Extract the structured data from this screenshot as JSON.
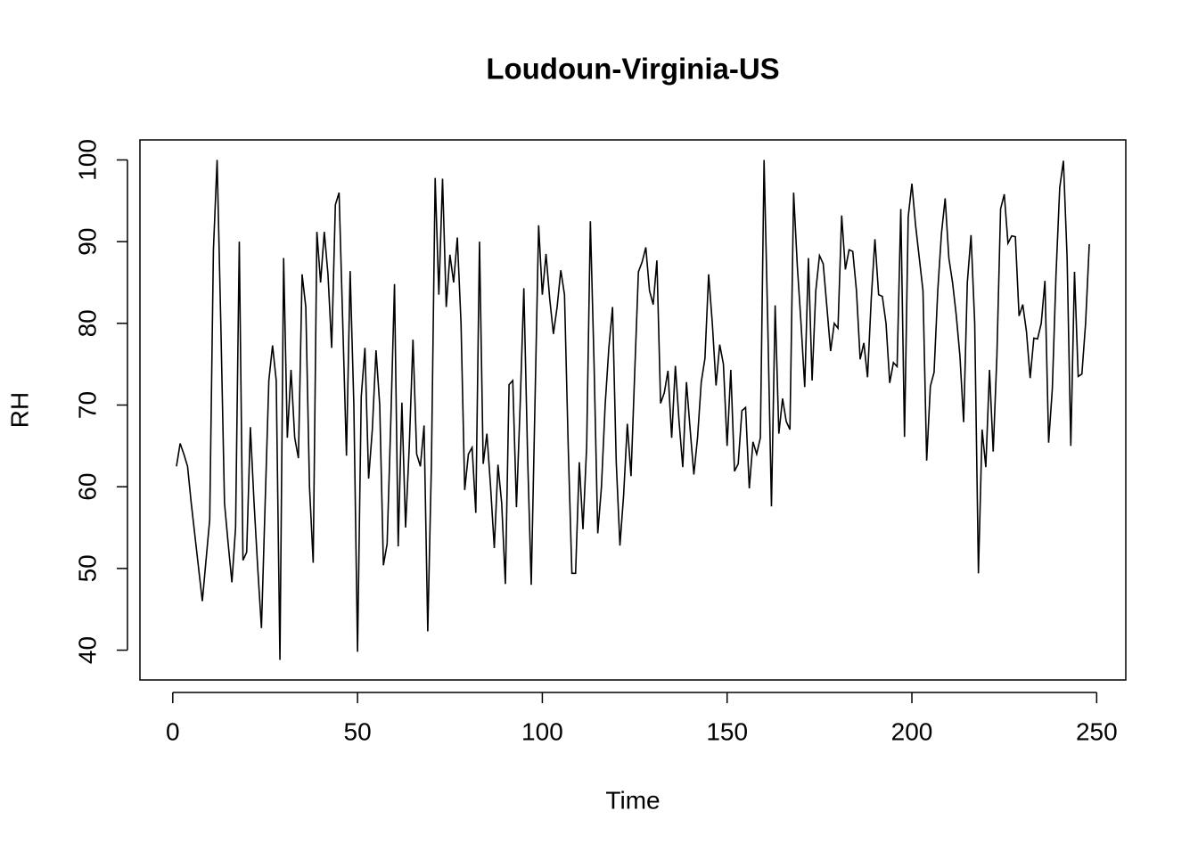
{
  "chart_data": {
    "type": "line",
    "title": "Loudoun-Virginia-US",
    "x_label": "Time",
    "y_label": "RH",
    "x": [
      1,
      2,
      3,
      4,
      5,
      6,
      7,
      8,
      9,
      10,
      11,
      12,
      13,
      14,
      15,
      16,
      17,
      18,
      19,
      20,
      21,
      22,
      23,
      24,
      25,
      26,
      27,
      28,
      29,
      30,
      31,
      32,
      33,
      34,
      35,
      36,
      37,
      38,
      39,
      40,
      41,
      42,
      43,
      44,
      45,
      46,
      47,
      48,
      49,
      50,
      51,
      52,
      53,
      54,
      55,
      56,
      57,
      58,
      59,
      60,
      61,
      62,
      63,
      64,
      65,
      66,
      67,
      68,
      69,
      70,
      71,
      72,
      73,
      74,
      75,
      76,
      77,
      78,
      79,
      80,
      81,
      82,
      83,
      84,
      85,
      86,
      87,
      88,
      89,
      90,
      91,
      92,
      93,
      94,
      95,
      96,
      97,
      98,
      99,
      100,
      101,
      102,
      103,
      104,
      105,
      106,
      107,
      108,
      109,
      110,
      111,
      112,
      113,
      114,
      115,
      116,
      117,
      118,
      119,
      120,
      121,
      122,
      123,
      124,
      125,
      126,
      127,
      128,
      129,
      130,
      131,
      132,
      133,
      134,
      135,
      136,
      137,
      138,
      139,
      140,
      141,
      142,
      143,
      144,
      145,
      146,
      147,
      148,
      149,
      150,
      151,
      152,
      153,
      154,
      155,
      156,
      157,
      158,
      159,
      160,
      161,
      162,
      163,
      164,
      165,
      166,
      167,
      168,
      169,
      170,
      171,
      172,
      173,
      174,
      175,
      176,
      177,
      178,
      179,
      180,
      181,
      182,
      183,
      184,
      185,
      186,
      187,
      188,
      189,
      190,
      191,
      192,
      193,
      194,
      195,
      196,
      197,
      198,
      199,
      200,
      201,
      202,
      203,
      204,
      205,
      206,
      207,
      208,
      209,
      210,
      211,
      212,
      213,
      214,
      215,
      216,
      217,
      218,
      219,
      220,
      221,
      222,
      223,
      224,
      225,
      226,
      227,
      228,
      229,
      230,
      231,
      232,
      233,
      234,
      235,
      236,
      237,
      238,
      239,
      240,
      241,
      242,
      243,
      244,
      245,
      246,
      247,
      248
    ],
    "values": [
      62.5,
      65.3,
      64,
      62.5,
      58,
      54,
      50,
      46,
      51,
      56,
      89,
      100,
      80,
      58,
      53,
      48.3,
      55,
      90,
      51,
      52,
      67.3,
      58,
      50,
      42.7,
      58,
      73,
      77.3,
      73,
      38.8,
      88,
      66,
      74.3,
      66,
      63.5,
      86,
      82,
      60,
      50.7,
      91.2,
      85,
      91.2,
      86,
      77,
      94.5,
      96,
      80,
      63.8,
      86.4,
      70,
      39.8,
      71,
      77,
      61,
      67,
      76.7,
      70,
      50.4,
      53,
      68,
      84.8,
      52.7,
      70.3,
      55,
      65,
      78,
      64,
      62.5,
      67.5,
      42.3,
      63,
      97.8,
      83.5,
      97.7,
      82,
      88.4,
      85,
      90.5,
      80,
      59.6,
      64,
      64.8,
      56.8,
      90,
      62.8,
      66.5,
      60,
      52.5,
      62.7,
      58,
      48.1,
      72.5,
      73,
      57.5,
      70,
      84.3,
      64,
      48,
      70,
      92,
      83.5,
      88.5,
      83,
      78.7,
      82,
      86.5,
      83.5,
      65,
      49.4,
      49.4,
      63,
      54.8,
      65,
      92.5,
      75,
      54.3,
      60,
      70,
      77,
      82,
      63,
      52.8,
      59,
      67.7,
      61.3,
      74,
      86.3,
      87.5,
      89.3,
      84,
      82.3,
      87.7,
      70.2,
      71.5,
      74.2,
      66,
      74.8,
      68,
      62.4,
      72.8,
      67,
      61.5,
      66,
      72.8,
      75.7,
      86,
      80,
      72.4,
      77.4,
      75,
      65,
      74.3,
      61.9,
      62.8,
      69.3,
      69.7,
      59.8,
      65.5,
      64,
      66,
      100,
      80,
      57.6,
      82.2,
      66.5,
      70.8,
      68,
      67,
      96,
      87,
      80,
      72.2,
      88,
      73,
      84,
      88.3,
      87.3,
      82,
      76.6,
      80,
      79.4,
      93.2,
      86.6,
      89,
      88.8,
      84,
      75.6,
      77.6,
      73.4,
      83,
      90.3,
      83.5,
      83.3,
      80,
      72.7,
      75.2,
      74.7,
      94,
      66.1,
      93,
      97.1,
      92,
      88,
      84,
      63.2,
      72.3,
      74,
      84,
      91,
      95.3,
      88,
      85,
      81,
      76,
      67.9,
      85,
      90.8,
      80,
      49.4,
      67,
      62.4,
      74.3,
      64.3,
      76,
      94,
      95.8,
      89.8,
      90.7,
      90.6,
      80.9,
      82.3,
      79,
      73.3,
      78.2,
      78.1,
      80,
      85.2,
      65.4,
      72,
      86,
      96.6,
      99.9,
      88,
      65,
      86.3,
      73.5,
      73.8,
      80,
      89.7
    ],
    "color": "#000000",
    "xlim": [
      -8.88,
      257.88
    ],
    "ylim": [
      36.35,
      102.45
    ],
    "xticks": [
      0,
      50,
      100,
      150,
      200,
      250
    ],
    "yticks": [
      40,
      50,
      60,
      70,
      80,
      90,
      100
    ]
  }
}
